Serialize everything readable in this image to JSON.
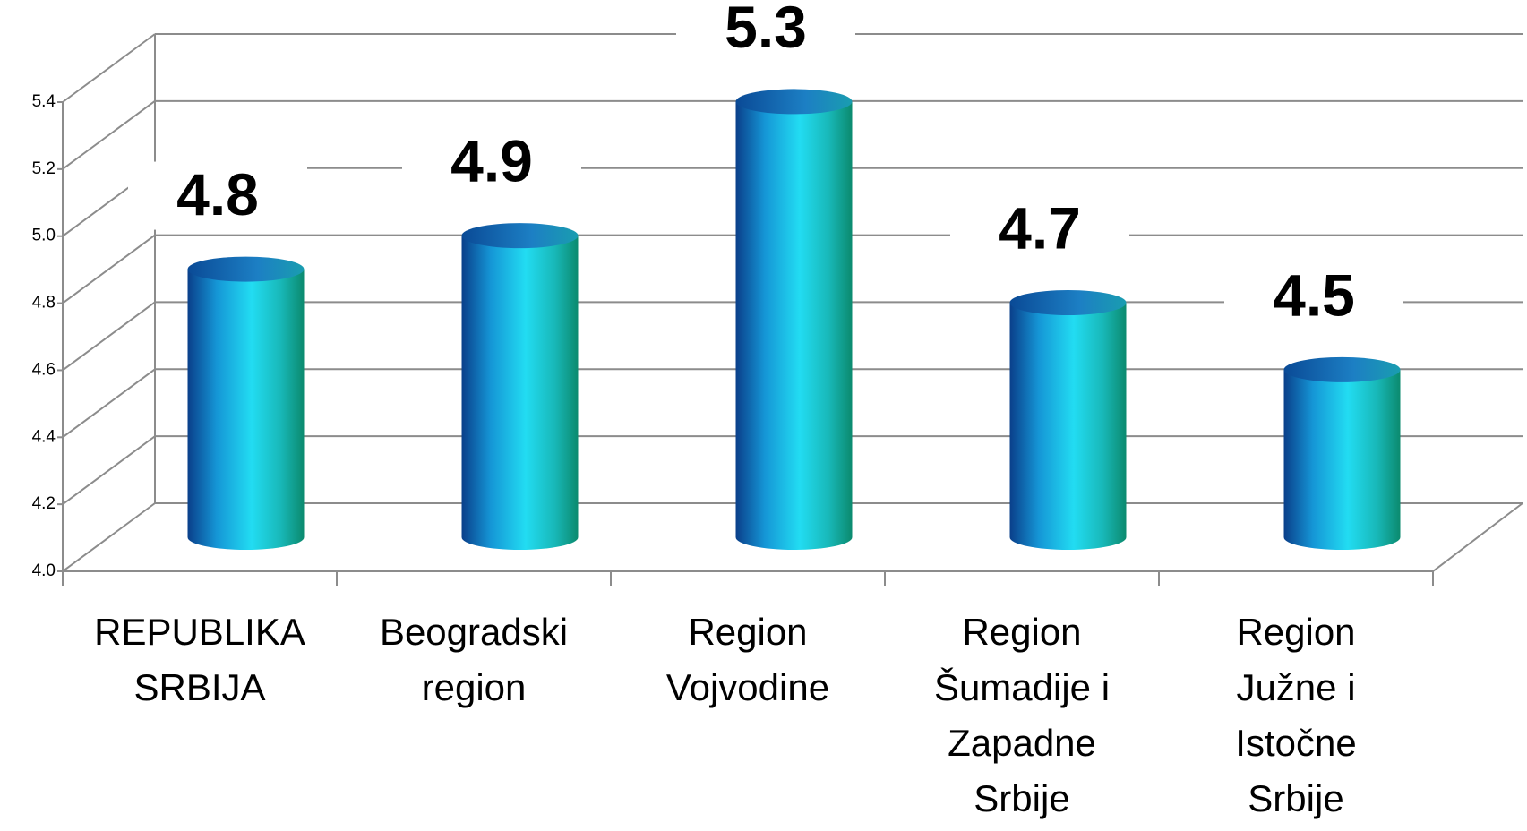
{
  "chart_data": {
    "type": "bar",
    "categories": [
      "REPUBLIKA SRBIJA",
      "Beogradski region",
      "Region Vojvodine",
      "Region Šumadije i Zapadne Srbije",
      "Region Južne i Istočne Srbije"
    ],
    "values": [
      4.8,
      4.9,
      5.3,
      4.7,
      4.5
    ],
    "ylim": [
      4.0,
      5.4
    ],
    "yticks": [
      {
        "value": 4.0,
        "label": "4.0"
      },
      4.2,
      4.4,
      4.6,
      4.8,
      {
        "value": 5.0,
        "label": "5.0"
      },
      5.2,
      5.4
    ],
    "grid": true
  }
}
